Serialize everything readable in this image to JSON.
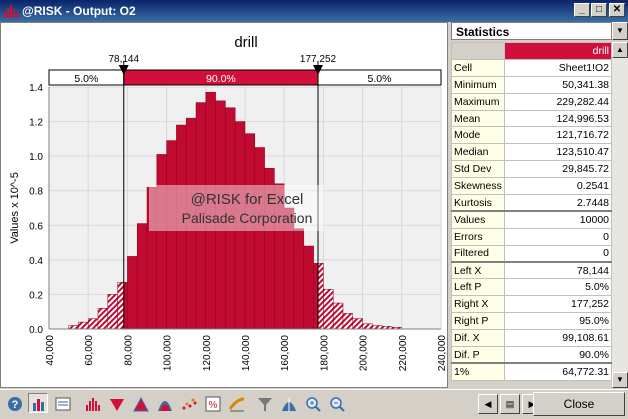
{
  "window": {
    "title": "@RISK - Output: O2"
  },
  "chart_data": {
    "type": "histogram",
    "title": "drill",
    "ylabel": "Values x 10^-5",
    "xlim": [
      40000,
      240000
    ],
    "ylim": [
      0,
      1.4
    ],
    "x_tick_labels": [
      "40,000",
      "60,000",
      "80,000",
      "100,000",
      "120,000",
      "140,000",
      "160,000",
      "180,000",
      "200,000",
      "220,000",
      "240,000"
    ],
    "y_tick_labels": [
      "0.0",
      "0.2",
      "0.4",
      "0.6",
      "0.8",
      "1.0",
      "1.2",
      "1.4"
    ],
    "bin_width": 5000,
    "bin_starts": [
      50000,
      55000,
      60000,
      65000,
      70000,
      75000,
      80000,
      85000,
      90000,
      95000,
      100000,
      105000,
      110000,
      115000,
      120000,
      125000,
      130000,
      135000,
      140000,
      145000,
      150000,
      155000,
      160000,
      165000,
      170000,
      175000,
      180000,
      185000,
      190000,
      195000,
      200000,
      205000,
      210000,
      215000
    ],
    "bin_values": [
      0.02,
      0.04,
      0.06,
      0.12,
      0.2,
      0.27,
      0.42,
      0.61,
      0.82,
      1.01,
      1.09,
      1.18,
      1.22,
      1.31,
      1.37,
      1.32,
      1.28,
      1.2,
      1.13,
      1.05,
      0.93,
      0.84,
      0.7,
      0.58,
      0.48,
      0.38,
      0.23,
      0.15,
      0.09,
      0.06,
      0.03,
      0.02,
      0.015,
      0.01
    ],
    "delimiters": {
      "left": {
        "label": "78,144",
        "value": 78144
      },
      "right": {
        "label": "177,252",
        "value": 177252
      }
    },
    "percent_bar": {
      "left": "5.0%",
      "middle": "90.0%",
      "right": "5.0%"
    },
    "watermark": {
      "line1": "@RISK for Excel",
      "line2": "Palisade Corporation"
    },
    "colors": {
      "bar": "#c00a30",
      "hatch": "#c00a30",
      "delimiter_band": "#d0103a",
      "plot_bg": "#f0f0f0"
    }
  },
  "stats": {
    "header": "Statistics",
    "rows": [
      {
        "label": "",
        "value": "drill"
      },
      {
        "label": "Cell",
        "value": "Sheet1!O2"
      },
      {
        "label": "Minimum",
        "value": "50,341.38"
      },
      {
        "label": "Maximum",
        "value": "229,282.44"
      },
      {
        "label": "Mean",
        "value": "124,996.53"
      },
      {
        "label": "Mode",
        "value": "121,716.72"
      },
      {
        "label": "Median",
        "value": "123,510.47"
      },
      {
        "label": "Std Dev",
        "value": "29,845.72"
      },
      {
        "label": "Skewness",
        "value": "0.2541"
      },
      {
        "label": "Kurtosis",
        "value": "2.7448"
      },
      {
        "label": "Values",
        "value": "10000"
      },
      {
        "label": "Errors",
        "value": "0"
      },
      {
        "label": "Filtered",
        "value": "0"
      },
      {
        "label": "Left X",
        "value": "78,144"
      },
      {
        "label": "Left P",
        "value": "5.0%"
      },
      {
        "label": "Right X",
        "value": "177,252"
      },
      {
        "label": "Right P",
        "value": "95.0%"
      },
      {
        "label": "Dif. X",
        "value": "99,108.61"
      },
      {
        "label": "Dif. P",
        "value": "90.0%"
      },
      {
        "label": "1%",
        "value": "64,772.31"
      }
    ]
  },
  "toolbar": {
    "buttons": [
      "help-icon",
      "histogram-icon",
      "graph-format-icon",
      "histogram-type-icon",
      "cumulative-ascending-icon",
      "cumulative-descending-icon",
      "distribution-overlay-icon",
      "scatter-icon",
      "percentile-icon",
      "tornado-icon",
      "filter-icon",
      "fit-distribution-icon",
      "zoom-in-icon",
      "zoom-out-icon"
    ],
    "close_label": "Close"
  }
}
